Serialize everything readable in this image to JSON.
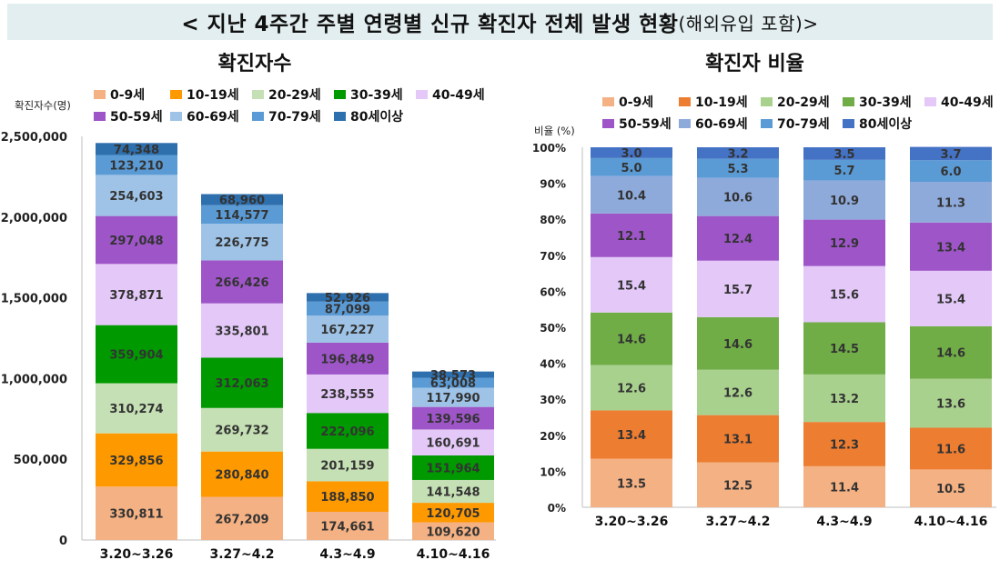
{
  "header": {
    "title": "< 지난 4주간 주별 연령별 신규 확진자 전체 발생 현황",
    "title_suffix": "(해외유입 포함)>"
  },
  "colors": [
    "#f4b183",
    "#ff9900",
    "#c5e0b4",
    "#009900",
    "#e3c8f8",
    "#9e55c8",
    "#9ec3e6",
    "#5b9bd5",
    "#2e6fad"
  ],
  "right_colors": [
    "#f4b183",
    "#ed7d31",
    "#a9d18e",
    "#70ad47",
    "#e3c8f8",
    "#9e55c8",
    "#8eaadb",
    "#5b9bd5",
    "#4472c4"
  ],
  "chart_data": [
    {
      "type": "bar",
      "stacked": true,
      "title": "확진자수",
      "ylabel": "확진자수(명)",
      "ylim": [
        0,
        2500000
      ],
      "yticks": [
        "0",
        "500,000",
        "1,000,000",
        "1,500,000",
        "2,000,000",
        "2,500,000"
      ],
      "grid": false,
      "legend": "top",
      "categories": [
        "3.20~3.26",
        "3.27~4.2",
        "4.3~4.9",
        "4.10~4.16"
      ],
      "series": [
        {
          "name": "0-9세",
          "values": [
            330811,
            267209,
            174661,
            109620
          ],
          "labels": [
            "330,811",
            "267,209",
            "174,661",
            "109,620"
          ]
        },
        {
          "name": "10-19세",
          "values": [
            329856,
            280840,
            188850,
            120705
          ],
          "labels": [
            "329,856",
            "280,840",
            "188,850",
            "120,705"
          ]
        },
        {
          "name": "20-29세",
          "values": [
            310274,
            269732,
            201159,
            141548
          ],
          "labels": [
            "310,274",
            "269,732",
            "201,159",
            "141,548"
          ]
        },
        {
          "name": "30-39세",
          "values": [
            359904,
            312063,
            222096,
            151964
          ],
          "labels": [
            "359,904",
            "312,063",
            "222,096",
            "151,964"
          ]
        },
        {
          "name": "40-49세",
          "values": [
            378871,
            335801,
            238555,
            160691
          ],
          "labels": [
            "378,871",
            "335,801",
            "238,555",
            "160,691"
          ]
        },
        {
          "name": "50-59세",
          "values": [
            297048,
            266426,
            196849,
            139596
          ],
          "labels": [
            "297,048",
            "266,426",
            "196,849",
            "139,596"
          ]
        },
        {
          "name": "60-69세",
          "values": [
            254603,
            226775,
            167227,
            117990
          ],
          "labels": [
            "254,603",
            "226,775",
            "167,227",
            "117,990"
          ]
        },
        {
          "name": "70-79세",
          "values": [
            123210,
            114577,
            87099,
            63008
          ],
          "labels": [
            "123,210",
            "114,577",
            "87,099",
            "63,008"
          ]
        },
        {
          "name": "80세이상",
          "values": [
            74348,
            68960,
            52926,
            38573
          ],
          "labels": [
            "74,348",
            "68,960",
            "52,926",
            "38,573"
          ]
        }
      ]
    },
    {
      "type": "bar",
      "stacked": true,
      "title": "확진자 비율",
      "ylabel": "비율 (%)",
      "ylim": [
        0,
        100
      ],
      "yticks": [
        "0%",
        "10%",
        "20%",
        "30%",
        "40%",
        "50%",
        "60%",
        "70%",
        "80%",
        "90%",
        "100%"
      ],
      "grid": false,
      "legend": "top",
      "categories": [
        "3.20~3.26",
        "3.27~4.2",
        "4.3~4.9",
        "4.10~4.16"
      ],
      "series": [
        {
          "name": "0-9세",
          "values": [
            13.5,
            12.5,
            11.4,
            10.5
          ],
          "labels": [
            "13.5",
            "12.5",
            "11.4",
            "10.5"
          ]
        },
        {
          "name": "10-19세",
          "values": [
            13.4,
            13.1,
            12.3,
            11.6
          ],
          "labels": [
            "13.4",
            "13.1",
            "12.3",
            "11.6"
          ]
        },
        {
          "name": "20-29세",
          "values": [
            12.6,
            12.6,
            13.2,
            13.6
          ],
          "labels": [
            "12.6",
            "12.6",
            "13.2",
            "13.6"
          ]
        },
        {
          "name": "30-39세",
          "values": [
            14.6,
            14.6,
            14.5,
            14.6
          ],
          "labels": [
            "14.6",
            "14.6",
            "14.5",
            "14.6"
          ]
        },
        {
          "name": "40-49세",
          "values": [
            15.4,
            15.7,
            15.6,
            15.4
          ],
          "labels": [
            "15.4",
            "15.7",
            "15.6",
            "15.4"
          ]
        },
        {
          "name": "50-59세",
          "values": [
            12.1,
            12.4,
            12.9,
            13.4
          ],
          "labels": [
            "12.1",
            "12.4",
            "12.9",
            "13.4"
          ]
        },
        {
          "name": "60-69세",
          "values": [
            10.4,
            10.6,
            10.9,
            11.3
          ],
          "labels": [
            "10.4",
            "10.6",
            "10.9",
            "11.3"
          ]
        },
        {
          "name": "70-79세",
          "values": [
            5.0,
            5.3,
            5.7,
            6.0
          ],
          "labels": [
            "5.0",
            "5.3",
            "5.7",
            "6.0"
          ]
        },
        {
          "name": "80세이상",
          "values": [
            3.0,
            3.2,
            3.5,
            3.7
          ],
          "labels": [
            "3.0",
            "3.2",
            "3.5",
            "3.7"
          ]
        }
      ]
    }
  ]
}
